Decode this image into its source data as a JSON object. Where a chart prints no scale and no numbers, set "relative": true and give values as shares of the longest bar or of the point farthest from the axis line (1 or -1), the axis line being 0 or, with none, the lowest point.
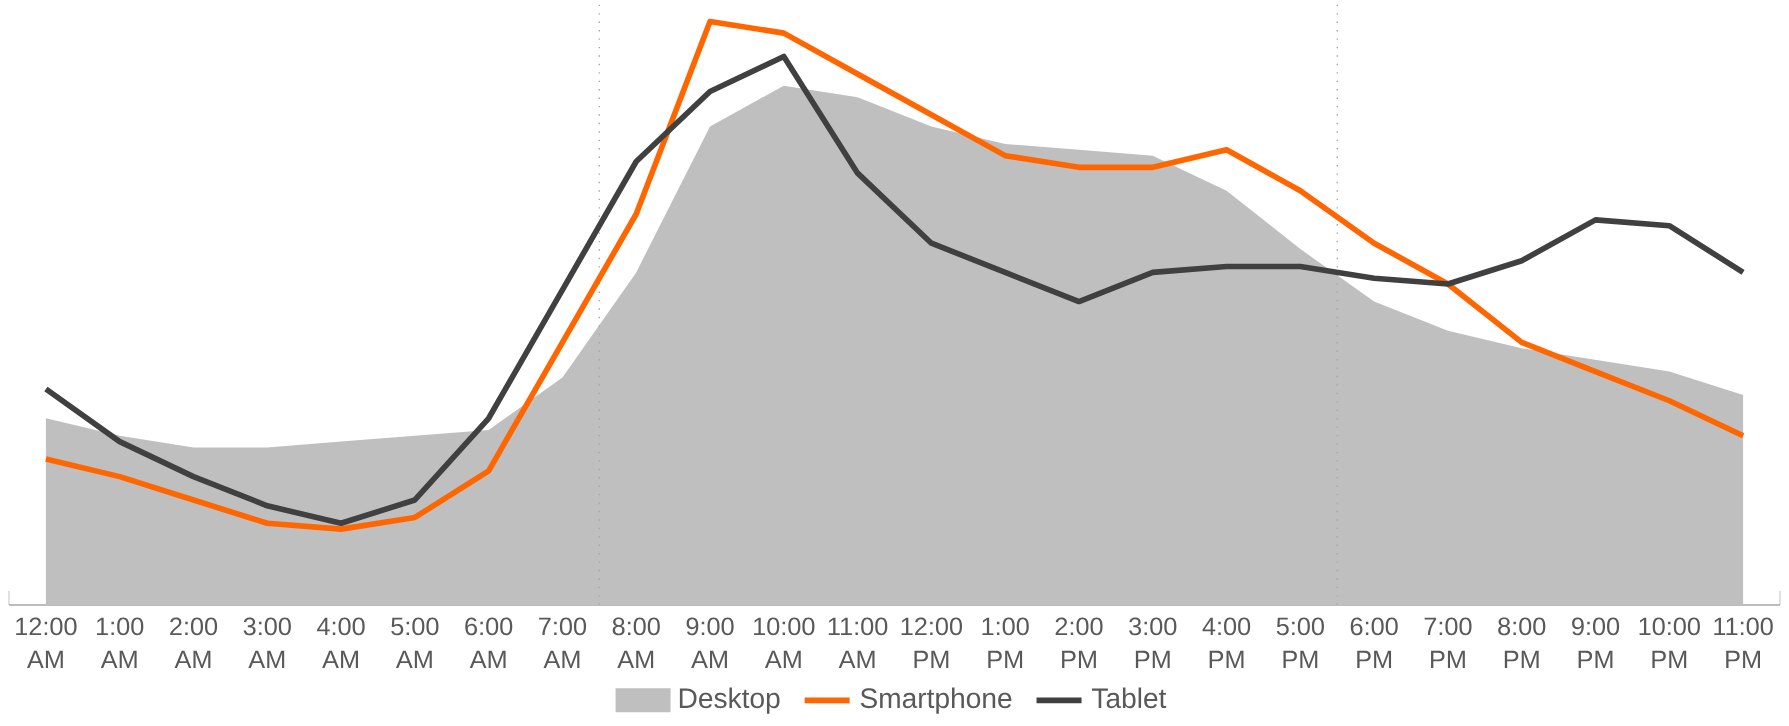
{
  "chart_data": {
    "type": "line",
    "relative": true,
    "legend": "bottom",
    "marker": "none",
    "categories": [
      "12:00 AM",
      "1:00 AM",
      "2:00 AM",
      "3:00 AM",
      "4:00 AM",
      "5:00 AM",
      "6:00 AM",
      "7:00 AM",
      "8:00 AM",
      "9:00 AM",
      "10:00 AM",
      "11:00 AM",
      "12:00 PM",
      "1:00 PM",
      "2:00 PM",
      "3:00 PM",
      "4:00 PM",
      "5:00 PM",
      "6:00 PM",
      "7:00 PM",
      "8:00 PM",
      "9:00 PM",
      "10:00 PM",
      "11:00 PM"
    ],
    "series": [
      {
        "name": "Desktop",
        "type": "area",
        "color": "#bfbfbf",
        "values": [
          0.32,
          0.29,
          0.27,
          0.27,
          0.28,
          0.29,
          0.3,
          0.39,
          0.57,
          0.82,
          0.89,
          0.87,
          0.82,
          0.79,
          0.78,
          0.77,
          0.71,
          0.61,
          0.52,
          0.47,
          0.44,
          0.42,
          0.4,
          0.36
        ]
      },
      {
        "name": "Smartphone",
        "color": "#ff6600",
        "values": [
          0.25,
          0.22,
          0.18,
          0.14,
          0.13,
          0.15,
          0.23,
          0.45,
          0.67,
          1,
          0.98,
          0.91,
          0.84,
          0.77,
          0.75,
          0.75,
          0.78,
          0.71,
          0.62,
          0.55,
          0.45,
          0.4,
          0.35,
          0.29
        ]
      },
      {
        "name": "Tablet",
        "color": "#404040",
        "values": [
          0.37,
          0.28,
          0.22,
          0.17,
          0.14,
          0.18,
          0.32,
          0.54,
          0.76,
          0.88,
          0.94,
          0.74,
          0.62,
          0.57,
          0.52,
          0.57,
          0.58,
          0.58,
          0.56,
          0.55,
          0.59,
          0.66,
          0.65,
          0.57
        ]
      }
    ]
  }
}
